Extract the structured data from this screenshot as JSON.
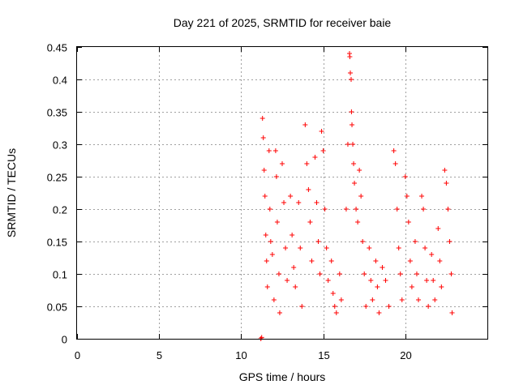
{
  "chart_data": {
    "type": "scatter",
    "title": "Day 221 of 2025, SRMTID for receiver baie",
    "xlabel": "GPS time / hours",
    "ylabel": "SRMTID / TECUs",
    "xlim": [
      0,
      25
    ],
    "ylim": [
      0,
      0.45
    ],
    "xticks": [
      0,
      5,
      10,
      15,
      20
    ],
    "yticks": [
      0,
      0.05,
      0.1,
      0.15,
      0.2,
      0.25,
      0.3,
      0.35,
      0.4,
      0.45
    ],
    "xtick_labels": [
      "0",
      "5",
      "10",
      "15",
      "20"
    ],
    "ytick_labels": [
      "0",
      "0.05",
      "0.1",
      "0.15",
      "0.2",
      "0.25",
      "0.3",
      "0.35",
      "0.4",
      "0.45"
    ],
    "grid": true,
    "marker": "+",
    "series": [
      {
        "name": "SRMTID",
        "color": "#ff0000",
        "points": [
          [
            11.2,
            0.0
          ],
          [
            11.25,
            0.002
          ],
          [
            11.3,
            0.34
          ],
          [
            11.35,
            0.31
          ],
          [
            11.4,
            0.26
          ],
          [
            11.45,
            0.22
          ],
          [
            11.5,
            0.16
          ],
          [
            11.55,
            0.12
          ],
          [
            11.6,
            0.08
          ],
          [
            11.7,
            0.29
          ],
          [
            11.75,
            0.2
          ],
          [
            11.8,
            0.15
          ],
          [
            11.9,
            0.13
          ],
          [
            12.0,
            0.06
          ],
          [
            12.1,
            0.29
          ],
          [
            12.15,
            0.25
          ],
          [
            12.2,
            0.18
          ],
          [
            12.3,
            0.1
          ],
          [
            12.35,
            0.04
          ],
          [
            12.5,
            0.27
          ],
          [
            12.6,
            0.21
          ],
          [
            12.7,
            0.14
          ],
          [
            12.8,
            0.09
          ],
          [
            13.0,
            0.22
          ],
          [
            13.1,
            0.16
          ],
          [
            13.2,
            0.11
          ],
          [
            13.3,
            0.08
          ],
          [
            13.5,
            0.21
          ],
          [
            13.6,
            0.14
          ],
          [
            13.7,
            0.05
          ],
          [
            13.9,
            0.33
          ],
          [
            14.0,
            0.27
          ],
          [
            14.1,
            0.23
          ],
          [
            14.2,
            0.18
          ],
          [
            14.3,
            0.12
          ],
          [
            14.5,
            0.28
          ],
          [
            14.6,
            0.21
          ],
          [
            14.7,
            0.15
          ],
          [
            14.8,
            0.1
          ],
          [
            14.9,
            0.32
          ],
          [
            15.0,
            0.29
          ],
          [
            15.1,
            0.2
          ],
          [
            15.2,
            0.14
          ],
          [
            15.3,
            0.09
          ],
          [
            15.5,
            0.12
          ],
          [
            15.6,
            0.07
          ],
          [
            15.7,
            0.05
          ],
          [
            15.8,
            0.04
          ],
          [
            16.0,
            0.1
          ],
          [
            16.1,
            0.06
          ],
          [
            16.4,
            0.2
          ],
          [
            16.5,
            0.3
          ],
          [
            16.6,
            0.44
          ],
          [
            16.62,
            0.435
          ],
          [
            16.65,
            0.41
          ],
          [
            16.7,
            0.4
          ],
          [
            16.72,
            0.35
          ],
          [
            16.75,
            0.33
          ],
          [
            16.8,
            0.3
          ],
          [
            16.85,
            0.27
          ],
          [
            16.9,
            0.24
          ],
          [
            17.0,
            0.2
          ],
          [
            17.1,
            0.18
          ],
          [
            17.2,
            0.26
          ],
          [
            17.3,
            0.22
          ],
          [
            17.4,
            0.15
          ],
          [
            17.5,
            0.1
          ],
          [
            17.6,
            0.05
          ],
          [
            17.8,
            0.14
          ],
          [
            17.9,
            0.09
          ],
          [
            18.0,
            0.06
          ],
          [
            18.2,
            0.12
          ],
          [
            18.3,
            0.08
          ],
          [
            18.4,
            0.04
          ],
          [
            18.6,
            0.11
          ],
          [
            18.8,
            0.09
          ],
          [
            19.0,
            0.05
          ],
          [
            19.3,
            0.29
          ],
          [
            19.4,
            0.27
          ],
          [
            19.5,
            0.2
          ],
          [
            19.6,
            0.14
          ],
          [
            19.7,
            0.1
          ],
          [
            19.8,
            0.06
          ],
          [
            20.0,
            0.25
          ],
          [
            20.1,
            0.22
          ],
          [
            20.2,
            0.18
          ],
          [
            20.3,
            0.12
          ],
          [
            20.4,
            0.08
          ],
          [
            20.6,
            0.15
          ],
          [
            20.7,
            0.1
          ],
          [
            20.8,
            0.06
          ],
          [
            21.0,
            0.22
          ],
          [
            21.1,
            0.2
          ],
          [
            21.2,
            0.14
          ],
          [
            21.3,
            0.09
          ],
          [
            21.4,
            0.05
          ],
          [
            21.6,
            0.13
          ],
          [
            21.7,
            0.09
          ],
          [
            21.8,
            0.06
          ],
          [
            22.0,
            0.17
          ],
          [
            22.1,
            0.12
          ],
          [
            22.2,
            0.08
          ],
          [
            22.4,
            0.26
          ],
          [
            22.5,
            0.24
          ],
          [
            22.6,
            0.2
          ],
          [
            22.7,
            0.15
          ],
          [
            22.8,
            0.1
          ],
          [
            22.85,
            0.04
          ]
        ]
      }
    ]
  }
}
